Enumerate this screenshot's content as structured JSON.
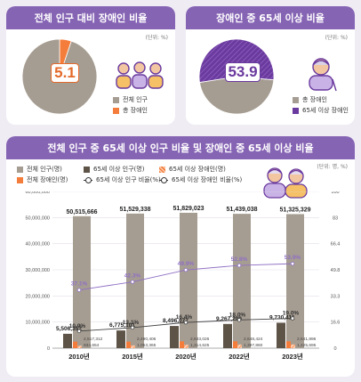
{
  "panel1": {
    "title": "전체 인구 대비 장애인 비율",
    "unit": "(단위: %)",
    "value_label": "5.1",
    "legend": [
      "전체 인구",
      "총 장애인"
    ],
    "colors": {
      "total": "#a69d92",
      "disabled": "#f47d3c"
    }
  },
  "panel2": {
    "title": "장애인 중 65세 이상 비율",
    "unit": "(단위: %)",
    "value_label": "53.9",
    "legend": [
      "총 장애인",
      "65세 이상 장애인"
    ],
    "colors": {
      "disabled": "#a69d92",
      "senior": "#6b3a9e"
    }
  },
  "panel3": {
    "title": "전체 인구 중 65세 이상 인구 비율 및 장애인 중 65세 이상 비율",
    "unit": "(단위: 명, %)",
    "legend": [
      "전체 인구(명)",
      "65세 이상 인구(명)",
      "65세 이상 장애인(명)",
      "전체 장애인(명)",
      "65세 이상 인구 비율(%)",
      "65세 이상 장애인 비율(%)"
    ]
  },
  "chart_data": [
    {
      "type": "pie",
      "title": "전체 인구 대비 장애인 비율",
      "labels": [
        "전체 인구",
        "총 장애인"
      ],
      "values": [
        94.9,
        5.1
      ]
    },
    {
      "type": "pie",
      "title": "장애인 중 65세 이상 비율",
      "labels": [
        "총 장애인",
        "65세 이상 장애인"
      ],
      "values": [
        46.1,
        53.9
      ]
    },
    {
      "type": "bar",
      "title": "전체 인구 중 65세 이상 인구 비율 및 장애인 중 65세 이상 비율",
      "categories": [
        "2010년",
        "2015년",
        "2020년",
        "2022년",
        "2023년"
      ],
      "series": [
        {
          "name": "전체 인구(명)",
          "values": [
            50515666,
            51529338,
            51829023,
            51439038,
            51325329
          ],
          "labels": [
            "50,515,666",
            "51,529,338",
            "51,829,023",
            "51,439,038",
            "51,325,329"
          ],
          "color": "#a69d92"
        },
        {
          "name": "65세 이상 인구(명)",
          "values": [
            5506352,
            6775101,
            8496077,
            9267290,
            9730411
          ],
          "labels": [
            "5,506,352",
            "6,775,101",
            "8,496,077",
            "9,267,290",
            "9,730,411"
          ],
          "color": "#5e5347"
        },
        {
          "name": "전체 장애인(명)",
          "values": [
            2517312,
            2490406,
            2633026,
            2648424,
            2641896
          ],
          "labels": [
            "2,517,312",
            "2,490,406",
            "2,633,026",
            "2,648,424",
            "2,641,896"
          ],
          "color": "#f47d3c"
        },
        {
          "name": "65세 이상 장애인(명)",
          "values": [
            934654,
            1053365,
            1314625,
            1397860,
            1425695
          ],
          "labels": [
            "934,654",
            "1,053,365",
            "1,314,625",
            "1,397,860",
            "1,425,695"
          ],
          "color": "#f47d3c"
        },
        {
          "name": "65세 이상 인구 비율(%)",
          "type": "line",
          "values": [
            10.9,
            13.1,
            16.4,
            18.0,
            19.0
          ],
          "labels": [
            "10.9%",
            "13.1%",
            "16.4%",
            "18.0%",
            "19.0%"
          ],
          "color": "#444444"
        },
        {
          "name": "65세 이상 장애인 비율(%)",
          "type": "line",
          "values": [
            37.1,
            42.3,
            49.9,
            52.8,
            53.9
          ],
          "labels": [
            "37.1%",
            "42.3%",
            "49.9%",
            "52.8%",
            "53.9%"
          ],
          "color": "#8f6fc4"
        }
      ],
      "y_left": {
        "min": 0,
        "max": 60000000,
        "ticks": [
          "0",
          "10,000,000",
          "20,000,000",
          "30,000,000",
          "40,000,000",
          "50,000,000",
          "60,000,000"
        ]
      },
      "y_right": {
        "min": 0,
        "max": 100,
        "ticks": [
          "0",
          "16.6",
          "33.3",
          "49.8",
          "66.4",
          "83",
          "100"
        ]
      }
    }
  ]
}
